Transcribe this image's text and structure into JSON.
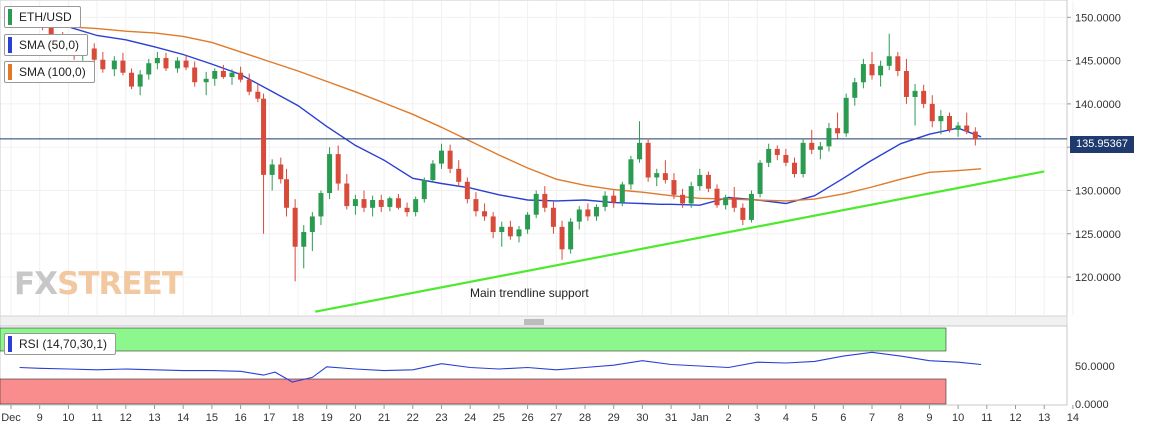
{
  "symbol": "ETH/USD",
  "indicators": {
    "sma50": {
      "label": "SMA (50,0)",
      "color": "#2a3fd4"
    },
    "sma100": {
      "label": "SMA (100,0)",
      "color": "#e07a2a"
    },
    "rsi": {
      "label": "RSI (14,70,30,1)",
      "color": "#2a3fd4"
    }
  },
  "current_price": "135.95367",
  "annotation": "Main trendline support",
  "watermark": {
    "part1": "FX",
    "part2": "STREET"
  },
  "colors": {
    "up": "#2a9b50",
    "down": "#d84a3a",
    "trendline": "#4bea2c",
    "price_line": "#1f3a6e",
    "rsi_overbought_zone": "#8cf78c",
    "rsi_oversold_zone": "#f98c8c"
  },
  "chart_data": {
    "type": "candlestick",
    "x_tick_labels": [
      "Dec",
      "9",
      "10",
      "11",
      "12",
      "13",
      "14",
      "15",
      "16",
      "17",
      "18",
      "19",
      "20",
      "21",
      "22",
      "23",
      "24",
      "25",
      "26",
      "27",
      "28",
      "29",
      "30",
      "31",
      "Jan",
      "2",
      "3",
      "4",
      "5",
      "6",
      "7",
      "8",
      "9",
      "10",
      "11",
      "12",
      "13",
      "14"
    ],
    "y_ticks": [
      "150.0000",
      "145.0000",
      "140.0000",
      "135.0000",
      "130.0000",
      "125.0000",
      "120.0000"
    ],
    "y_tick_values": [
      150,
      145,
      140,
      135,
      130,
      125,
      120
    ],
    "ylim": [
      115.5,
      152
    ],
    "rsi_y_ticks": [
      "50.0000",
      "0.0000"
    ],
    "rsi_ylim": [
      0,
      100
    ],
    "rsi_zones": {
      "overbought": 70,
      "oversold": 30
    },
    "series": [
      {
        "name": "SMA (50,0)",
        "points": [
          [
            1,
            150.2
          ],
          [
            2,
            148.9
          ],
          [
            3,
            147.9
          ],
          [
            4,
            147.4
          ],
          [
            5,
            146.6
          ],
          [
            6,
            145.7
          ],
          [
            7,
            144.6
          ],
          [
            8,
            143.4
          ],
          [
            9,
            141.6
          ],
          [
            10,
            139.8
          ],
          [
            11,
            137.4
          ],
          [
            12,
            135.2
          ],
          [
            13,
            133.5
          ],
          [
            14,
            131.4
          ],
          [
            15,
            130.8
          ],
          [
            16,
            130.3
          ],
          [
            17,
            129.5
          ],
          [
            18,
            128.9
          ],
          [
            19,
            128.8
          ],
          [
            20,
            128.9
          ],
          [
            21,
            128.6
          ],
          [
            22,
            128.5
          ],
          [
            22.6,
            128.4
          ],
          [
            23,
            128.4
          ],
          [
            24,
            128.3
          ],
          [
            25,
            129.2
          ],
          [
            26,
            128.9
          ],
          [
            27,
            128.5
          ],
          [
            28,
            129.4
          ],
          [
            29,
            131.4
          ],
          [
            29.9,
            133.3
          ],
          [
            31,
            135.4
          ],
          [
            32,
            136.5
          ],
          [
            33,
            137.2
          ],
          [
            33.8,
            136.2
          ]
        ]
      },
      {
        "name": "SMA (100,0)",
        "points": [
          [
            1,
            149.2
          ],
          [
            2,
            148.9
          ],
          [
            3,
            148.7
          ],
          [
            4,
            148.4
          ],
          [
            5,
            148.2
          ],
          [
            6,
            147.8
          ],
          [
            7,
            147.1
          ],
          [
            8,
            146.0
          ],
          [
            9,
            144.9
          ],
          [
            10,
            143.8
          ],
          [
            11,
            142.6
          ],
          [
            12,
            141.4
          ],
          [
            13,
            140.1
          ],
          [
            14,
            138.8
          ],
          [
            15,
            137.3
          ],
          [
            16,
            135.7
          ],
          [
            17,
            134.1
          ],
          [
            18,
            132.6
          ],
          [
            19,
            131.3
          ],
          [
            20,
            130.6
          ],
          [
            21,
            130.1
          ],
          [
            22,
            129.8
          ],
          [
            23,
            129.4
          ],
          [
            24,
            129.1
          ],
          [
            25,
            129.0
          ],
          [
            26,
            128.9
          ],
          [
            27,
            128.8
          ],
          [
            28,
            129.0
          ],
          [
            29,
            129.6
          ],
          [
            30,
            130.4
          ],
          [
            31,
            131.3
          ],
          [
            32,
            132.1
          ],
          [
            33,
            132.3
          ],
          [
            33.8,
            132.5
          ]
        ]
      },
      {
        "name": "Main trendline support",
        "points": [
          [
            10.6,
            116.0
          ],
          [
            36,
            132.2
          ]
        ]
      }
    ],
    "candles": [
      [
        0.4,
        149.2,
        151.0,
        149.0,
        150.5
      ],
      [
        0.7,
        150.5,
        151.2,
        149.6,
        149.8
      ],
      [
        1.1,
        149.8,
        150.9,
        148.5,
        149.1
      ],
      [
        1.4,
        149.1,
        149.8,
        147.2,
        147.6
      ],
      [
        1.8,
        147.6,
        148.3,
        146.2,
        146.5
      ],
      [
        2.2,
        146.5,
        147.4,
        145.1,
        145.6
      ],
      [
        2.5,
        145.6,
        146.9,
        145.0,
        146.4
      ],
      [
        2.9,
        146.4,
        147.0,
        144.8,
        145.1
      ],
      [
        3.2,
        145.1,
        146.0,
        143.6,
        144.0
      ],
      [
        3.6,
        144.0,
        145.5,
        143.2,
        145.0
      ],
      [
        3.9,
        145.0,
        145.9,
        143.3,
        143.6
      ],
      [
        4.2,
        143.6,
        144.1,
        141.7,
        142.0
      ],
      [
        4.5,
        142.0,
        143.9,
        141.0,
        143.4
      ],
      [
        4.8,
        143.4,
        145.2,
        142.8,
        144.7
      ],
      [
        5.1,
        144.7,
        146.0,
        144.0,
        145.3
      ],
      [
        5.4,
        145.3,
        145.9,
        143.8,
        144.1
      ],
      [
        5.8,
        144.1,
        145.4,
        143.6,
        145.0
      ],
      [
        6.1,
        145.0,
        145.6,
        143.9,
        144.2
      ],
      [
        6.4,
        144.2,
        144.9,
        142.0,
        142.5
      ],
      [
        6.8,
        142.5,
        143.7,
        141.0,
        142.9
      ],
      [
        7.1,
        142.9,
        144.1,
        142.1,
        143.8
      ],
      [
        7.4,
        143.8,
        144.5,
        142.9,
        143.1
      ],
      [
        7.7,
        143.1,
        144.0,
        142.2,
        143.6
      ],
      [
        8.0,
        143.6,
        144.3,
        142.5,
        142.8
      ],
      [
        8.3,
        142.8,
        143.5,
        141.0,
        141.4
      ],
      [
        8.6,
        141.4,
        142.3,
        140.2,
        140.6
      ],
      [
        8.8,
        140.6,
        141.2,
        125.0,
        131.8
      ],
      [
        9.1,
        131.8,
        133.6,
        130.0,
        133.0
      ],
      [
        9.4,
        133.0,
        133.8,
        130.8,
        131.3
      ],
      [
        9.6,
        131.3,
        132.5,
        127.0,
        128.0
      ],
      [
        9.9,
        128.0,
        129.0,
        119.5,
        123.5
      ],
      [
        10.2,
        123.5,
        126.0,
        121.0,
        125.2
      ],
      [
        10.5,
        125.2,
        127.5,
        123.0,
        127.0
      ],
      [
        10.8,
        127.0,
        130.0,
        126.0,
        129.7
      ],
      [
        11.1,
        129.7,
        135.0,
        129.0,
        134.2
      ],
      [
        11.4,
        134.2,
        135.2,
        130.0,
        130.8
      ],
      [
        11.7,
        130.8,
        131.9,
        127.8,
        128.2
      ],
      [
        12.0,
        128.2,
        129.5,
        127.2,
        129.0
      ],
      [
        12.3,
        129.0,
        130.0,
        127.5,
        128.0
      ],
      [
        12.6,
        128.0,
        129.4,
        127.0,
        128.9
      ],
      [
        12.9,
        128.9,
        129.5,
        127.5,
        128.1
      ],
      [
        13.2,
        128.1,
        129.3,
        127.6,
        129.1
      ],
      [
        13.5,
        129.1,
        129.6,
        127.8,
        128.0
      ],
      [
        13.8,
        128.0,
        128.6,
        127.0,
        127.5
      ],
      [
        14.1,
        127.5,
        129.3,
        127.0,
        129.0
      ],
      [
        14.4,
        129.0,
        131.5,
        128.6,
        131.2
      ],
      [
        14.7,
        131.2,
        133.5,
        130.9,
        133.1
      ],
      [
        15.0,
        133.1,
        135.4,
        132.5,
        134.6
      ],
      [
        15.3,
        134.6,
        135.3,
        132.0,
        132.5
      ],
      [
        15.6,
        132.5,
        133.5,
        130.5,
        131.0
      ],
      [
        15.9,
        131.0,
        131.5,
        128.5,
        129.0
      ],
      [
        16.2,
        129.0,
        129.8,
        127.0,
        127.6
      ],
      [
        16.5,
        127.6,
        128.5,
        126.5,
        127.0
      ],
      [
        16.8,
        127.0,
        127.5,
        124.5,
        125.2
      ],
      [
        17.1,
        125.2,
        126.4,
        123.5,
        125.8
      ],
      [
        17.4,
        125.8,
        126.5,
        124.3,
        124.7
      ],
      [
        17.7,
        124.7,
        125.9,
        124.0,
        125.5
      ],
      [
        18.0,
        125.5,
        127.5,
        125.0,
        127.2
      ],
      [
        18.3,
        127.2,
        130.0,
        126.8,
        129.6
      ],
      [
        18.6,
        129.6,
        130.5,
        127.5,
        128.0
      ],
      [
        18.9,
        128.0,
        128.8,
        125.0,
        125.8
      ],
      [
        19.2,
        125.8,
        126.5,
        122.0,
        123.2
      ],
      [
        19.5,
        123.2,
        126.8,
        122.7,
        126.4
      ],
      [
        19.8,
        126.4,
        128.2,
        125.5,
        127.8
      ],
      [
        20.1,
        127.8,
        128.5,
        126.5,
        127.0
      ],
      [
        20.4,
        127.0,
        128.4,
        126.5,
        128.1
      ],
      [
        20.7,
        128.1,
        129.9,
        127.6,
        129.4
      ],
      [
        21.0,
        129.4,
        130.0,
        128.0,
        128.6
      ],
      [
        21.3,
        128.6,
        131.0,
        128.2,
        130.7
      ],
      [
        21.6,
        130.7,
        134.0,
        130.1,
        133.6
      ],
      [
        21.9,
        133.6,
        138.0,
        133.2,
        135.5
      ],
      [
        22.2,
        135.5,
        136.0,
        131.0,
        131.5
      ],
      [
        22.5,
        131.5,
        132.5,
        130.5,
        132.0
      ],
      [
        22.8,
        132.0,
        133.5,
        130.8,
        131.2
      ],
      [
        23.1,
        131.2,
        132.0,
        129.0,
        129.5
      ],
      [
        23.4,
        129.5,
        130.2,
        128.0,
        128.5
      ],
      [
        23.7,
        128.5,
        131.0,
        128.0,
        130.5
      ],
      [
        24.0,
        130.5,
        132.5,
        130.0,
        131.8
      ],
      [
        24.3,
        131.8,
        132.2,
        129.8,
        130.2
      ],
      [
        24.6,
        130.2,
        130.7,
        128.0,
        128.3
      ],
      [
        24.9,
        128.3,
        129.5,
        127.8,
        129.2
      ],
      [
        25.2,
        129.2,
        130.4,
        127.5,
        128.0
      ],
      [
        25.5,
        128.0,
        128.5,
        126.0,
        126.6
      ],
      [
        25.8,
        126.6,
        130.0,
        126.3,
        129.6
      ],
      [
        26.1,
        129.6,
        133.5,
        129.2,
        133.2
      ],
      [
        26.4,
        133.2,
        135.4,
        132.7,
        134.8
      ],
      [
        26.7,
        134.8,
        135.2,
        133.5,
        134.1
      ],
      [
        27.0,
        134.1,
        134.8,
        132.8,
        133.2
      ],
      [
        27.3,
        133.2,
        133.8,
        131.5,
        131.9
      ],
      [
        27.6,
        131.9,
        136.0,
        131.5,
        135.5
      ],
      [
        27.9,
        135.5,
        137.0,
        134.2,
        134.7
      ],
      [
        28.2,
        134.7,
        135.6,
        133.6,
        135.1
      ],
      [
        28.5,
        135.1,
        137.8,
        134.5,
        137.2
      ],
      [
        28.8,
        137.2,
        139.0,
        136.0,
        136.6
      ],
      [
        29.1,
        136.6,
        141.2,
        136.2,
        140.7
      ],
      [
        29.4,
        140.7,
        143.0,
        139.8,
        142.5
      ],
      [
        29.7,
        142.5,
        145.2,
        141.8,
        144.6
      ],
      [
        30.0,
        144.6,
        146.0,
        142.8,
        143.3
      ],
      [
        30.3,
        143.3,
        145.0,
        142.0,
        144.4
      ],
      [
        30.6,
        144.4,
        148.1,
        143.9,
        145.5
      ],
      [
        30.9,
        145.5,
        146.0,
        143.2,
        143.8
      ],
      [
        31.2,
        143.8,
        145.2,
        140.0,
        140.8
      ],
      [
        31.5,
        140.8,
        142.3,
        137.5,
        141.5
      ],
      [
        31.8,
        141.5,
        142.2,
        139.5,
        140.0
      ],
      [
        32.1,
        140.0,
        141.0,
        137.3,
        138.0
      ],
      [
        32.4,
        138.0,
        139.3,
        136.5,
        138.6
      ],
      [
        32.7,
        138.6,
        139.0,
        136.7,
        137.0
      ],
      [
        33.0,
        137.0,
        137.9,
        136.2,
        137.5
      ],
      [
        33.3,
        137.5,
        139.0,
        136.5,
        136.8
      ],
      [
        33.6,
        136.8,
        137.3,
        135.2,
        135.95
      ]
    ],
    "rsi": [
      [
        0.3,
        48
      ],
      [
        1,
        47
      ],
      [
        2,
        46
      ],
      [
        3,
        45
      ],
      [
        4,
        46
      ],
      [
        5,
        45
      ],
      [
        6,
        44
      ],
      [
        7,
        44
      ],
      [
        8,
        43
      ],
      [
        8.8,
        38
      ],
      [
        9.2,
        42
      ],
      [
        9.8,
        29
      ],
      [
        10.5,
        35
      ],
      [
        11,
        49
      ],
      [
        12,
        46
      ],
      [
        13,
        44
      ],
      [
        14,
        45
      ],
      [
        15,
        53
      ],
      [
        16,
        48
      ],
      [
        17,
        46
      ],
      [
        18,
        48
      ],
      [
        19,
        45
      ],
      [
        20,
        48
      ],
      [
        21,
        51
      ],
      [
        22,
        57
      ],
      [
        23,
        52
      ],
      [
        24,
        50
      ],
      [
        25,
        48
      ],
      [
        26,
        55
      ],
      [
        27,
        54
      ],
      [
        28,
        56
      ],
      [
        29,
        63
      ],
      [
        30,
        68
      ],
      [
        31,
        63
      ],
      [
        32,
        57
      ],
      [
        33,
        55
      ],
      [
        33.8,
        52
      ]
    ]
  }
}
